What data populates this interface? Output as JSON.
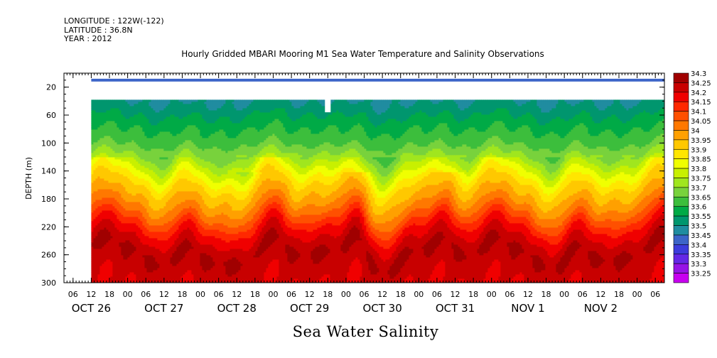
{
  "header": {
    "longitude": "LONGITUDE : 122W(-122)",
    "latitude": "LATITUDE : 36.8N",
    "year": "YEAR : 2012"
  },
  "title": "Hourly Gridded MBARI Mooring M1 Sea Water Temperature and Salinity Observations",
  "chart_data": {
    "type": "heatmap",
    "title": "Hourly Gridded MBARI Mooring M1 Sea Water Temperature and Salinity Observations",
    "xlabel": "Sea Water Salinity",
    "ylabel": "DEPTH (m)",
    "ylim": [
      300,
      0
    ],
    "y_ticks": [
      20,
      60,
      100,
      140,
      180,
      220,
      260,
      300
    ],
    "x_hour_ticks": [
      "06",
      "12",
      "18",
      "00",
      "06",
      "12",
      "18",
      "00",
      "06",
      "12",
      "18",
      "00",
      "06",
      "12",
      "18",
      "00",
      "06",
      "12",
      "18",
      "00",
      "06",
      "12",
      "18",
      "00",
      "06",
      "12",
      "18",
      "00",
      "06",
      "12",
      "18",
      "00",
      "06"
    ],
    "x_day_labels": [
      "OCT 26",
      "OCT 27",
      "OCT 28",
      "OCT 29",
      "OCT 30",
      "OCT 31",
      "NOV 1",
      "NOV 2"
    ],
    "x_day_label_ticks": [
      1,
      5,
      9,
      13,
      17,
      21,
      25,
      29
    ],
    "x_day_label_alt": [
      "NOV  1",
      "NOV  2"
    ],
    "data_start_tick": 1,
    "top_band_depth": [
      8,
      12
    ],
    "top_band_value": 33.42,
    "gap_depth": [
      12,
      38
    ],
    "gap_notch_tick": 14,
    "gap_notch_bottom": 56,
    "depth_profile": [
      {
        "depth": 38,
        "salinity": 33.49
      },
      {
        "depth": 60,
        "salinity": 33.55
      },
      {
        "depth": 80,
        "salinity": 33.6
      },
      {
        "depth": 100,
        "salinity": 33.64
      },
      {
        "depth": 120,
        "salinity": 33.72
      },
      {
        "depth": 140,
        "salinity": 33.82
      },
      {
        "depth": 160,
        "salinity": 33.91
      },
      {
        "depth": 180,
        "salinity": 33.97
      },
      {
        "depth": 200,
        "salinity": 34.05
      },
      {
        "depth": 220,
        "salinity": 34.15
      },
      {
        "depth": 240,
        "salinity": 34.22
      },
      {
        "depth": 255,
        "salinity": 34.26
      },
      {
        "depth": 270,
        "salinity": 34.24
      },
      {
        "depth": 300,
        "salinity": 34.2
      }
    ],
    "colorbar": {
      "labels": [
        "34.3",
        "34.25",
        "34.2",
        "34.15",
        "34.1",
        "34.05",
        "34",
        "33.95",
        "33.9",
        "33.85",
        "33.8",
        "33.75",
        "33.7",
        "33.65",
        "33.6",
        "33.55",
        "33.5",
        "33.45",
        "33.4",
        "33.35",
        "33.3",
        "33.25"
      ],
      "colors": [
        "#a00000",
        "#c80000",
        "#f00000",
        "#ff2800",
        "#ff5000",
        "#ff7800",
        "#ffa000",
        "#ffc800",
        "#ffe600",
        "#f0ff00",
        "#c8f000",
        "#a0e61e",
        "#78d23c",
        "#3cbe3c",
        "#00aa46",
        "#00966e",
        "#208ca0",
        "#3c64c8",
        "#3c3cdc",
        "#6428e6",
        "#9614e6",
        "#c800f0"
      ]
    }
  }
}
